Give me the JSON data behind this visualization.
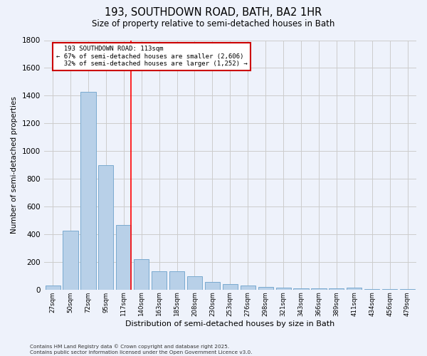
{
  "title": "193, SOUTHDOWN ROAD, BATH, BA2 1HR",
  "subtitle": "Size of property relative to semi-detached houses in Bath",
  "xlabel": "Distribution of semi-detached houses by size in Bath",
  "ylabel": "Number of semi-detached properties",
  "bar_color": "#b8d0e8",
  "bar_edgecolor": "#7aaacf",
  "background_color": "#eef2fb",
  "categories": [
    "27sqm",
    "50sqm",
    "72sqm",
    "95sqm",
    "117sqm",
    "140sqm",
    "163sqm",
    "185sqm",
    "208sqm",
    "230sqm",
    "253sqm",
    "276sqm",
    "298sqm",
    "321sqm",
    "343sqm",
    "366sqm",
    "389sqm",
    "411sqm",
    "434sqm",
    "456sqm",
    "479sqm"
  ],
  "values": [
    30,
    425,
    1430,
    900,
    465,
    220,
    135,
    135,
    95,
    55,
    40,
    30,
    22,
    12,
    8,
    8,
    8,
    15,
    6,
    4,
    4
  ],
  "ylim": [
    0,
    1800
  ],
  "yticks": [
    0,
    200,
    400,
    600,
    800,
    1000,
    1200,
    1400,
    1600,
    1800
  ],
  "property_label": "193 SOUTHDOWN ROAD: 113sqm",
  "pct_smaller": 67,
  "pct_smaller_n": "2,606",
  "pct_larger": 32,
  "pct_larger_n": "1,252",
  "vline_bar_index": 4,
  "annotation_box_color": "#ffffff",
  "annotation_box_edgecolor": "#cc0000",
  "footer_line1": "Contains HM Land Registry data © Crown copyright and database right 2025.",
  "footer_line2": "Contains public sector information licensed under the Open Government Licence v3.0."
}
